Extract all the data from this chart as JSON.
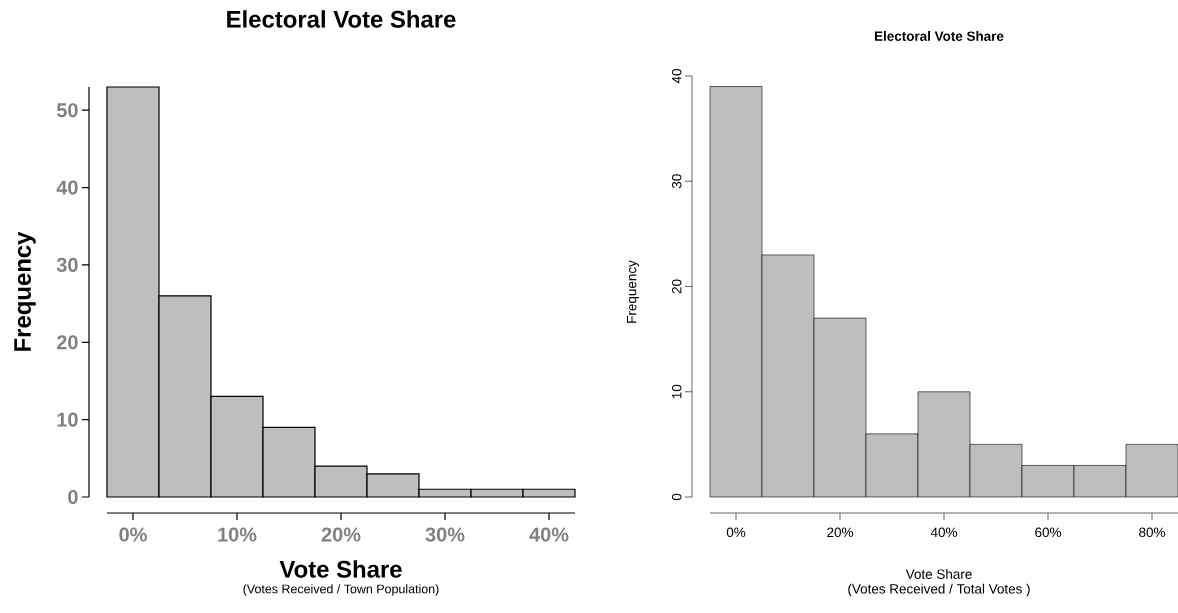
{
  "chart_data": [
    {
      "type": "histogram",
      "title": "Electoral Vote Share",
      "xlabel": "Vote Share",
      "ylabel": "Frequency",
      "annotations": [
        "(Votes Received / Town Population)"
      ],
      "bins": [
        -2.5,
        2.5,
        7.5,
        12.5,
        17.5,
        22.5,
        27.5,
        32.5,
        37.5,
        42.5
      ],
      "values": [
        53,
        26,
        13,
        9,
        4,
        3,
        1,
        1,
        1
      ],
      "color": "#bebebe",
      "xlim": [
        -2.5,
        42.5
      ],
      "ylim": [
        0,
        53
      ],
      "xticks": [
        {
          "value": 0,
          "label": "0%"
        },
        {
          "value": 10,
          "label": "10%"
        },
        {
          "value": 20,
          "label": "20%"
        },
        {
          "value": 30,
          "label": "30%"
        },
        {
          "value": 40,
          "label": "40%"
        }
      ],
      "yticks": [
        0,
        10,
        20,
        30,
        40,
        50
      ]
    },
    {
      "type": "histogram",
      "title": "Electoral Vote Share",
      "xlabel": "Vote Share",
      "ylabel": "Frequency",
      "annotations": [
        "(Votes Received / Total Votes )"
      ],
      "bins": [
        -5,
        5,
        15,
        25,
        35,
        45,
        55,
        65,
        75,
        85
      ],
      "values": [
        39,
        23,
        17,
        6,
        10,
        5,
        3,
        3,
        5
      ],
      "color": "#bebebe",
      "xlim": [
        -5,
        85
      ],
      "ylim": [
        0,
        40
      ],
      "xticks": [
        {
          "value": 0,
          "label": "0%"
        },
        {
          "value": 20,
          "label": "20%"
        },
        {
          "value": 40,
          "label": "40%"
        },
        {
          "value": 60,
          "label": "60%"
        },
        {
          "value": 80,
          "label": "80%"
        }
      ],
      "yticks": [
        0,
        10,
        20,
        30,
        40
      ]
    }
  ]
}
